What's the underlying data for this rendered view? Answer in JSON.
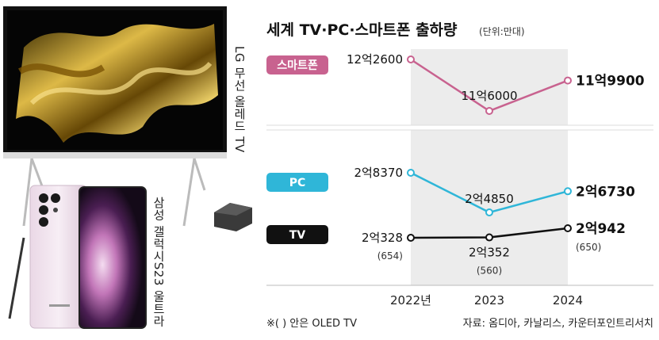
{
  "products": {
    "tv_caption": "LG 무선 올레드 TV",
    "phone_caption": "삼성 갤럭시S23 울트라"
  },
  "chart_data": {
    "type": "line",
    "title": "세계 TV·PC·스마트폰 출하량",
    "unit": "(단위:만대)",
    "categories": [
      "2022년",
      "2023",
      "2024"
    ],
    "series": [
      {
        "name": "스마트폰",
        "values": [
          122600,
          116000,
          119900
        ],
        "labels": [
          "12억2600",
          "11억6000",
          "11억9900"
        ],
        "color": "#c8628f"
      },
      {
        "name": "PC",
        "values": [
          28370,
          24850,
          26730
        ],
        "labels": [
          "2억8370",
          "2억4850",
          "2억6730"
        ],
        "color": "#2fb6d8"
      },
      {
        "name": "TV",
        "values": [
          20328,
          20352,
          20942
        ],
        "labels": [
          "2억328",
          "2억352",
          "2억942"
        ],
        "sublabels": [
          "(654)",
          "(560)",
          "(650)"
        ],
        "color": "#111111"
      }
    ],
    "shaded_range": [
      "2022년",
      "2024"
    ],
    "grid": false
  },
  "footnote": "※( ) 안은 OLED TV",
  "source": "자료: 옴디아, 카날리스, 카운터포인트리서치"
}
